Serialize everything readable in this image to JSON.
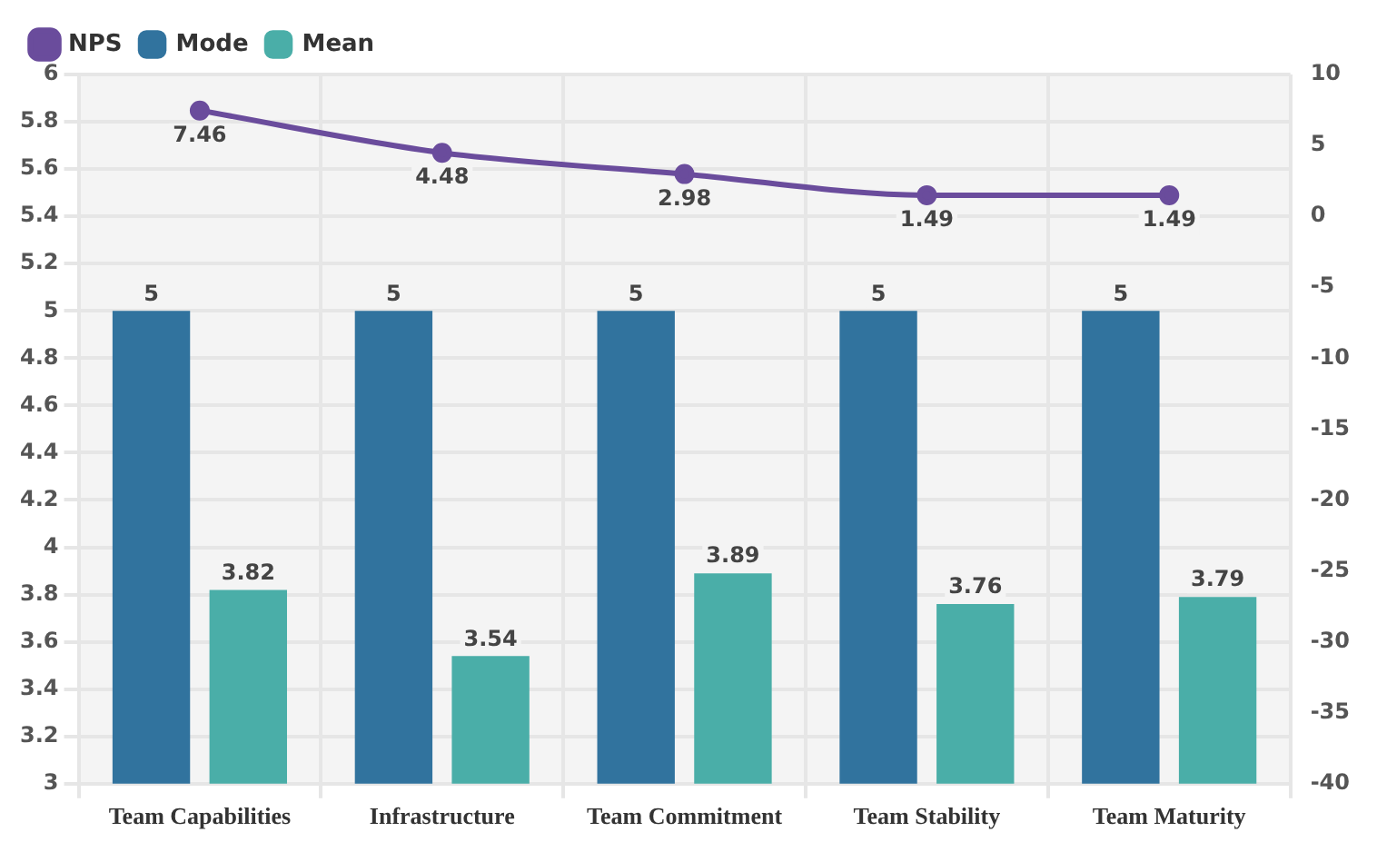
{
  "chart_data": {
    "type": "bar",
    "categories": [
      "Team Capabilities",
      "Infrastructure",
      "Team Commitment",
      "Team Stability",
      "Team Maturity"
    ],
    "series": [
      {
        "name": "NPS",
        "type": "line",
        "axis": "y2",
        "color": "#6a4c9c",
        "values": [
          7.46,
          4.48,
          2.98,
          1.49,
          1.49
        ]
      },
      {
        "name": "Mode",
        "color": "#31739e",
        "values": [
          5,
          5,
          5,
          5,
          5
        ]
      },
      {
        "name": "Mean",
        "color": "#4aaea8",
        "values": [
          3.82,
          3.54,
          3.89,
          3.76,
          3.79
        ]
      }
    ],
    "ylim": [
      3,
      6
    ],
    "yticks": [
      3,
      3.2,
      3.4,
      3.6,
      3.8,
      4,
      4.2,
      4.4,
      4.6,
      4.8,
      5,
      5.2,
      5.4,
      5.6,
      5.8,
      6
    ],
    "y2lim": [
      -40,
      10
    ],
    "y2ticks": [
      -40,
      -35,
      -30,
      -25,
      -20,
      -15,
      -10,
      -5,
      0,
      5,
      10
    ],
    "data_labels": true,
    "grid": true,
    "legend": "top left",
    "marker": "circle"
  }
}
